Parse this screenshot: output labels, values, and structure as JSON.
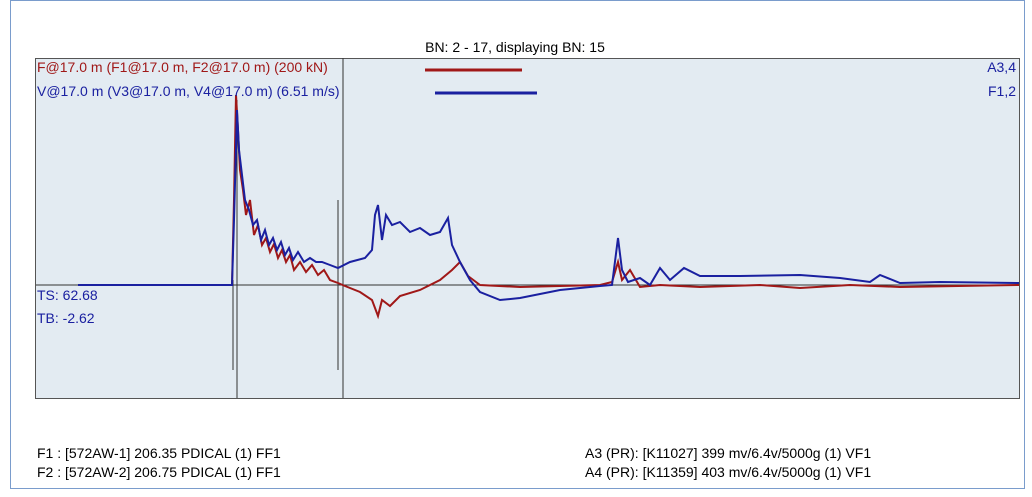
{
  "header": {
    "title": "BN: 2 - 17, displaying BN: 15"
  },
  "legend": {
    "force": "F@17.0 m (F1@17.0 m, F2@17.0 m) (200 kN)",
    "velocity": "V@17.0 m (V3@17.0 m, V4@17.0 m) (6.51 m/s)"
  },
  "right_labels": [
    "A3,4",
    "F1,2"
  ],
  "markers": [
    "TS: 62.68",
    "TB: -2.62"
  ],
  "sensors": {
    "left": [
      "F1 : [572AW-1] 206.35 PDICAL (1) FF1",
      "F2 : [572AW-2] 206.75 PDICAL (1) FF1"
    ],
    "right": [
      "A3 (PR): [K11027] 399 mv/6.4v/5000g (1) VF1",
      "A4 (PR): [K11359] 403 mv/6.4v/5000g (1) VF1"
    ]
  }
}
